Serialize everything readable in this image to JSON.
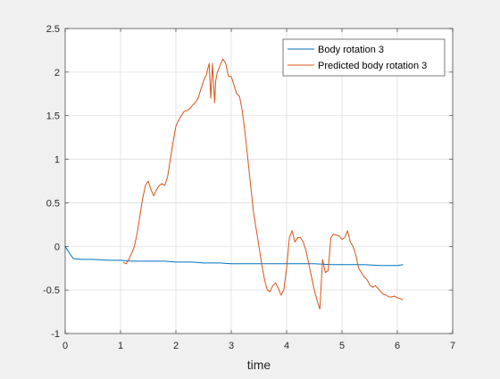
{
  "chart_data": {
    "type": "line",
    "title": "",
    "xlabel": "time",
    "ylabel": "",
    "xlim": [
      0,
      7
    ],
    "ylim": [
      -1,
      2.5
    ],
    "xticks": [
      "0",
      "1",
      "2",
      "3",
      "4",
      "5",
      "6",
      "7"
    ],
    "yticks": [
      "-1",
      "-0.5",
      "0",
      "0.5",
      "1",
      "1.5",
      "2",
      "2.5"
    ],
    "grid": true,
    "legend_position": "top-right",
    "series": [
      {
        "name": "Body rotation 3",
        "color": "#0072BD",
        "x": [
          0,
          0.05,
          0.1,
          0.15,
          0.3,
          0.5,
          0.8,
          1.0,
          1.2,
          1.5,
          1.8,
          2.0,
          2.3,
          2.5,
          2.8,
          3.0,
          3.3,
          3.6,
          3.9,
          4.2,
          4.5,
          4.8,
          5.1,
          5.4,
          5.7,
          6.0,
          6.1
        ],
        "y": [
          0,
          -0.05,
          -0.1,
          -0.14,
          -0.15,
          -0.15,
          -0.16,
          -0.16,
          -0.17,
          -0.17,
          -0.17,
          -0.18,
          -0.18,
          -0.19,
          -0.19,
          -0.2,
          -0.2,
          -0.2,
          -0.2,
          -0.2,
          -0.2,
          -0.21,
          -0.21,
          -0.21,
          -0.22,
          -0.22,
          -0.21
        ]
      },
      {
        "name": "Predicted body rotation 3",
        "color": "#D95319",
        "x": [
          1.05,
          1.1,
          1.15,
          1.2,
          1.25,
          1.3,
          1.35,
          1.4,
          1.45,
          1.5,
          1.55,
          1.6,
          1.65,
          1.7,
          1.75,
          1.8,
          1.85,
          1.9,
          1.95,
          2.0,
          2.05,
          2.1,
          2.15,
          2.2,
          2.25,
          2.3,
          2.35,
          2.4,
          2.45,
          2.5,
          2.55,
          2.6,
          2.63,
          2.66,
          2.7,
          2.72,
          2.75,
          2.8,
          2.85,
          2.9,
          2.95,
          3.0,
          3.05,
          3.1,
          3.15,
          3.2,
          3.25,
          3.3,
          3.35,
          3.4,
          3.45,
          3.5,
          3.55,
          3.6,
          3.65,
          3.7,
          3.75,
          3.8,
          3.85,
          3.9,
          3.95,
          4.0,
          4.05,
          4.1,
          4.15,
          4.2,
          4.25,
          4.3,
          4.35,
          4.4,
          4.45,
          4.5,
          4.55,
          4.6,
          4.62,
          4.65,
          4.7,
          4.75,
          4.8,
          4.85,
          4.9,
          4.95,
          5.0,
          5.05,
          5.1,
          5.15,
          5.2,
          5.25,
          5.3,
          5.35,
          5.4,
          5.45,
          5.5,
          5.55,
          5.6,
          5.65,
          5.7,
          5.75,
          5.8,
          5.85,
          5.9,
          5.95,
          6.0,
          6.05,
          6.1
        ],
        "y": [
          -0.18,
          -0.2,
          -0.15,
          -0.08,
          0.0,
          0.15,
          0.35,
          0.55,
          0.7,
          0.75,
          0.65,
          0.58,
          0.65,
          0.7,
          0.72,
          0.7,
          0.8,
          1.0,
          1.2,
          1.38,
          1.45,
          1.5,
          1.55,
          1.56,
          1.58,
          1.62,
          1.65,
          1.7,
          1.8,
          1.9,
          1.97,
          2.1,
          1.7,
          2.1,
          1.65,
          1.9,
          2.0,
          2.08,
          2.15,
          2.1,
          1.95,
          1.95,
          1.85,
          1.75,
          1.72,
          1.55,
          1.3,
          1.0,
          0.7,
          0.4,
          0.2,
          0.0,
          -0.2,
          -0.38,
          -0.5,
          -0.52,
          -0.45,
          -0.42,
          -0.48,
          -0.56,
          -0.5,
          -0.25,
          0.1,
          0.18,
          0.05,
          0.1,
          0.1,
          0.05,
          -0.05,
          -0.2,
          -0.35,
          -0.5,
          -0.62,
          -0.72,
          -0.5,
          -0.15,
          -0.3,
          -0.28,
          0.1,
          0.14,
          0.13,
          0.12,
          0.08,
          0.1,
          0.18,
          0.05,
          0.0,
          -0.1,
          -0.25,
          -0.3,
          -0.35,
          -0.38,
          -0.44,
          -0.47,
          -0.45,
          -0.48,
          -0.52,
          -0.55,
          -0.56,
          -0.58,
          -0.58,
          -0.57,
          -0.59,
          -0.6,
          -0.61
        ]
      }
    ]
  }
}
